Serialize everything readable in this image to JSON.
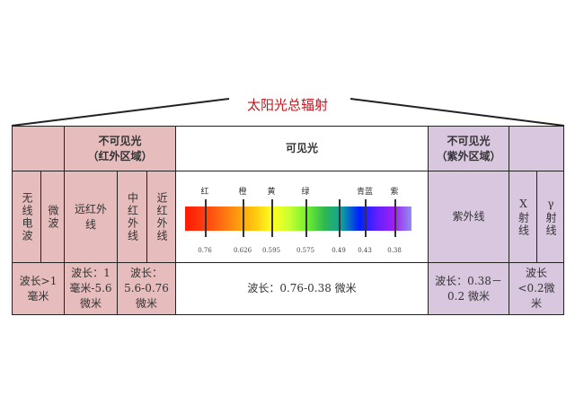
{
  "title": "太阳光总辐射",
  "header": {
    "ir": {
      "line1": "不可见光",
      "line2": "（红外区域）"
    },
    "visible": "可见光",
    "uv": {
      "line1": "不可见光",
      "line2": "（紫外区域）"
    }
  },
  "bands": {
    "radio": "无线电波",
    "micro": "微波",
    "far_ir": "远红外线",
    "mid_ir": "中红外线",
    "near_ir": "近红外线",
    "uv": "紫外线",
    "xray": "X射线",
    "gamma": "γ射线"
  },
  "wavelengths": {
    "radio_micro": "波长>1毫米",
    "far_ir": "波长：1毫米-5.6微米",
    "mid_near_ir": "波长：5.6-0.76微米",
    "visible": "波长：0.76-0.38 微米",
    "uv": "波长：0.38－0.2 微米",
    "xray_gamma": "波长<0.2微米"
  },
  "spectrum": {
    "colors": [
      "红",
      "橙",
      "黄",
      "绿",
      "",
      "青蓝",
      "紫"
    ],
    "values": [
      "0.76",
      "0.626",
      "0.595",
      "0.575",
      "0.49",
      "0.43",
      "0.38"
    ],
    "gradient": [
      "#ff1a00",
      "#ff3a10",
      "#ff6a10",
      "#ff9a10",
      "#ffc810",
      "#ffff20",
      "#c8ff30",
      "#70f030",
      "#30b850",
      "#10a0a0",
      "#0020ff",
      "#6020ff",
      "#a020f0",
      "#9090f0"
    ]
  },
  "colors": {
    "ir": "#e6bcbc",
    "uv": "#d8c7df",
    "title": "#c0161c"
  }
}
